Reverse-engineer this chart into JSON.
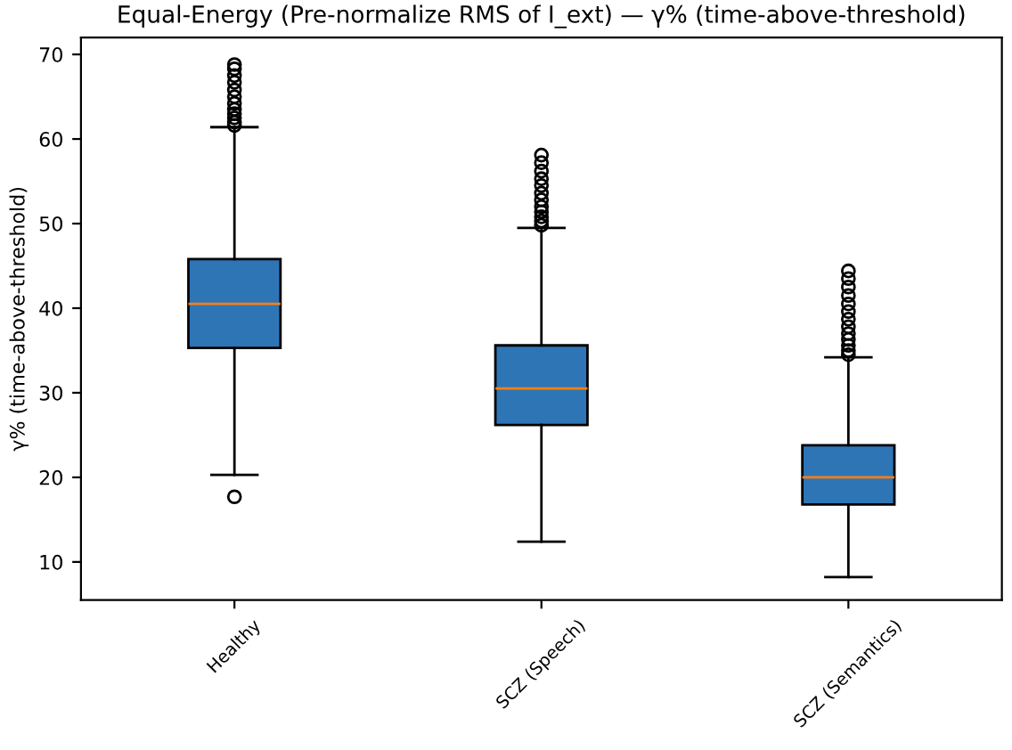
{
  "chart_data": {
    "type": "box",
    "title": "Equal-Energy (Pre-normalize RMS of I_ext) — γ% (time-above-threshold)",
    "ylabel": "γ% (time-above-threshold)",
    "categories": [
      "Healthy",
      "SCZ (Speech)",
      "SCZ (Semantics)"
    ],
    "boxes": [
      {
        "low": 20.3,
        "q1": 35.3,
        "median": 40.5,
        "q3": 45.8,
        "high": 61.4,
        "outliers": [
          17.7,
          61.6,
          62.0,
          62.5,
          63.0,
          63.5,
          64.2,
          65.0,
          65.8,
          66.7,
          67.5,
          68.3,
          68.8
        ]
      },
      {
        "low": 12.4,
        "q1": 26.2,
        "median": 30.5,
        "q3": 35.6,
        "high": 49.5,
        "outliers": [
          49.8,
          50.3,
          50.8,
          51.4,
          52.0,
          52.8,
          53.6,
          54.5,
          55.3,
          56.2,
          57.2,
          58.1
        ]
      },
      {
        "low": 8.2,
        "q1": 16.8,
        "median": 20.0,
        "q3": 23.8,
        "high": 34.2,
        "outliers": [
          34.5,
          35.0,
          35.6,
          36.3,
          37.0,
          37.8,
          38.7,
          39.6,
          40.5,
          41.5,
          42.5,
          43.5,
          44.4
        ]
      }
    ],
    "color": "#2e75b6",
    "ylim": [
      5.5,
      72
    ],
    "yticks": [
      10,
      20,
      30,
      40,
      50,
      60,
      70
    ],
    "grid": false
  }
}
